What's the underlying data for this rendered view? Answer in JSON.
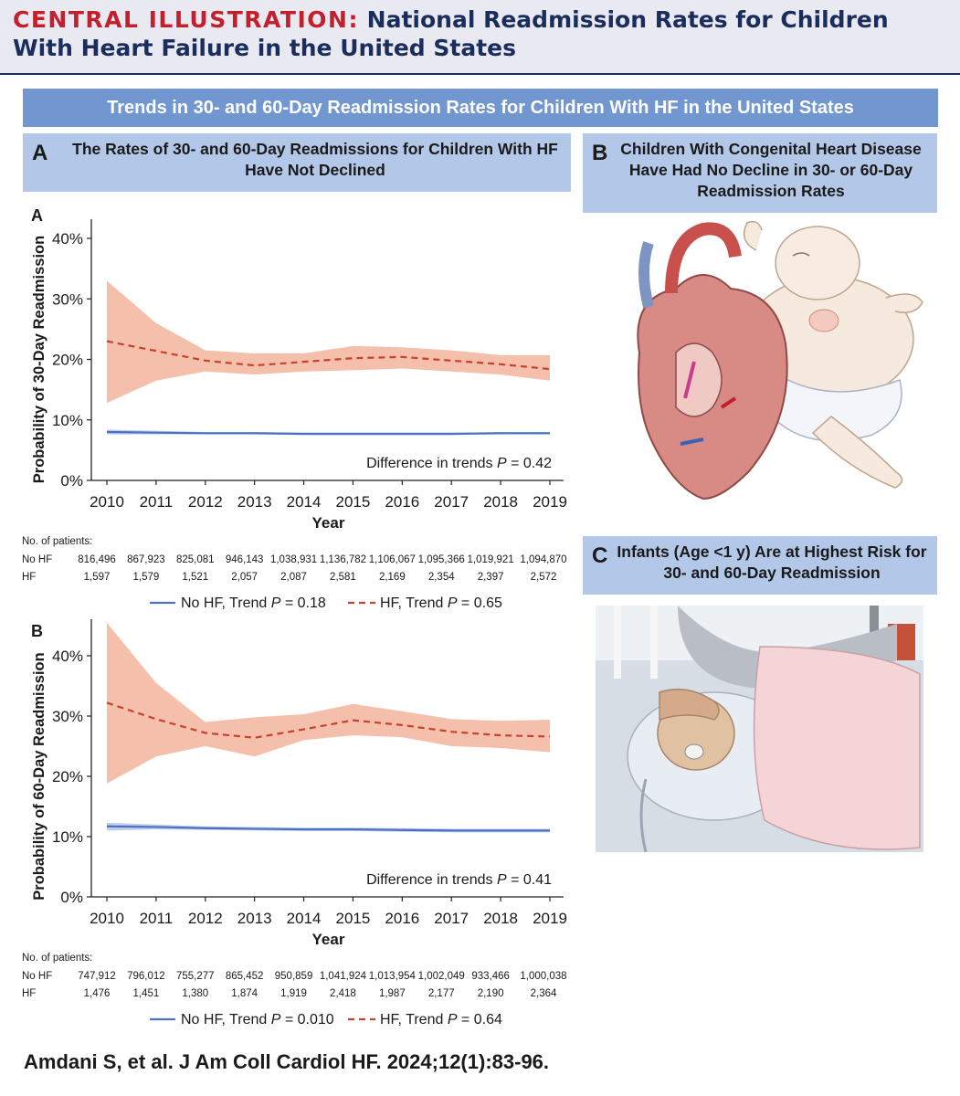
{
  "header": {
    "label": "CENTRAL ILLUSTRATION:",
    "title": "National Readmission Rates for Children With Heart Failure in the United States"
  },
  "banner": "Trends in 30- and 60-Day Readmission Rates for Children With HF in the United States",
  "panels": {
    "a": {
      "letter": "A",
      "title": "The Rates of 30- and 60-Day Readmissions for Children With HF Have Not Declined"
    },
    "b": {
      "letter": "B",
      "title": "Children With Congenital Heart Disease Have Had No Decline in 30- or 60-Day Readmission Rates"
    },
    "c": {
      "letter": "C",
      "title": "Infants (Age <1 y) Are at Highest Risk for 30- and 60-Day Readmission"
    }
  },
  "colors": {
    "accent_red": "#c3202d",
    "navy": "#1b2d5c",
    "banner_blue": "#7297d0",
    "panel_blue": "#b3c8e8",
    "hf_line": "#c9412c",
    "hf_band": "#f2b59c",
    "nohf_line": "#4a72c0",
    "nohf_band": "#b9c9e9"
  },
  "chart_data": [
    {
      "type": "line",
      "panel_label": "A",
      "ylabel": "Probability of 30-Day Readmission",
      "xlabel": "Year",
      "x": [
        2010,
        2011,
        2012,
        2013,
        2014,
        2015,
        2016,
        2017,
        2018,
        2019
      ],
      "ylim": [
        0,
        40
      ],
      "yticks": [
        "0%",
        "10%",
        "20%",
        "30%",
        "40%"
      ],
      "series": [
        {
          "name": "No HF",
          "style": "solid",
          "values": [
            8.0,
            7.9,
            7.8,
            7.8,
            7.7,
            7.7,
            7.7,
            7.7,
            7.8,
            7.8
          ],
          "ci_low": [
            7.6,
            7.6,
            7.6,
            7.6,
            7.5,
            7.5,
            7.5,
            7.5,
            7.6,
            7.6
          ],
          "ci_high": [
            8.4,
            8.2,
            8.0,
            8.0,
            7.9,
            7.9,
            7.9,
            7.9,
            8.0,
            8.0
          ]
        },
        {
          "name": "HF",
          "style": "dashed",
          "values": [
            23.0,
            21.4,
            19.8,
            19.0,
            19.6,
            20.2,
            20.4,
            19.8,
            19.2,
            18.4
          ],
          "ci_low": [
            12.8,
            16.5,
            18.0,
            17.5,
            18.0,
            18.2,
            18.5,
            18.0,
            17.5,
            16.5
          ],
          "ci_high": [
            33.0,
            26.0,
            21.5,
            21.0,
            21.0,
            22.2,
            22.0,
            21.5,
            20.7,
            20.7
          ]
        }
      ],
      "annotation": {
        "prefix": "Difference in trends ",
        "italic": "P",
        "suffix": " = 0.42"
      },
      "risk_table": {
        "heading": "No. of patients:",
        "rows": [
          {
            "label": "No HF",
            "values": [
              "816,496",
              "867,923",
              "825,081",
              "946,143",
              "1,038,931",
              "1,136,782",
              "1,106,067",
              "1,095,366",
              "1,019,921",
              "1,094,870"
            ]
          },
          {
            "label": "HF",
            "values": [
              "1,597",
              "1,579",
              "1,521",
              "2,057",
              "2,087",
              "2,581",
              "2,169",
              "2,354",
              "2,397",
              "2,572"
            ]
          }
        ]
      },
      "legend": [
        {
          "prefix": "No HF, Trend ",
          "italic": "P",
          "suffix": " = 0.18"
        },
        {
          "prefix": "HF, Trend ",
          "italic": "P",
          "suffix": " = 0.65"
        }
      ]
    },
    {
      "type": "line",
      "panel_label": "B",
      "ylabel": "Probability of 60-Day Readmission",
      "xlabel": "Year",
      "x": [
        2010,
        2011,
        2012,
        2013,
        2014,
        2015,
        2016,
        2017,
        2018,
        2019
      ],
      "ylim": [
        0,
        40
      ],
      "yticks": [
        "0%",
        "10%",
        "20%",
        "30%",
        "40%"
      ],
      "series": [
        {
          "name": "No HF",
          "style": "solid",
          "values": [
            11.7,
            11.6,
            11.4,
            11.3,
            11.2,
            11.2,
            11.1,
            11.0,
            11.0,
            11.0
          ],
          "ci_low": [
            11.0,
            11.2,
            11.1,
            11.0,
            10.9,
            10.9,
            10.8,
            10.7,
            10.7,
            10.7
          ],
          "ci_high": [
            12.3,
            12.0,
            11.7,
            11.6,
            11.5,
            11.5,
            11.4,
            11.3,
            11.3,
            11.3
          ]
        },
        {
          "name": "HF",
          "style": "dashed",
          "values": [
            32.2,
            29.5,
            27.2,
            26.4,
            27.8,
            29.3,
            28.5,
            27.4,
            26.8,
            26.6
          ],
          "ci_low": [
            18.8,
            23.3,
            25.0,
            23.3,
            26.0,
            26.8,
            26.5,
            25.0,
            24.7,
            24.0
          ],
          "ci_high": [
            45.5,
            35.5,
            29.0,
            29.8,
            30.3,
            32.0,
            30.8,
            29.5,
            29.2,
            29.4
          ]
        }
      ],
      "annotation": {
        "prefix": "Difference in trends ",
        "italic": "P",
        "suffix": " = 0.41"
      },
      "risk_table": {
        "heading": "No. of patients:",
        "rows": [
          {
            "label": "No HF",
            "values": [
              "747,912",
              "796,012",
              "755,277",
              "865,452",
              "950,859",
              "1,041,924",
              "1,013,954",
              "1,002,049",
              "933,466",
              "1,000,038"
            ]
          },
          {
            "label": "HF",
            "values": [
              "1,476",
              "1,451",
              "1,380",
              "1,874",
              "1,919",
              "2,418",
              "1,987",
              "2,177",
              "2,190",
              "2,364"
            ]
          }
        ]
      },
      "legend": [
        {
          "prefix": "No HF, Trend ",
          "italic": "P",
          "suffix": " = 0.010"
        },
        {
          "prefix": "HF, Trend ",
          "italic": "P",
          "suffix": " = 0.64"
        }
      ]
    }
  ],
  "citation": "Amdani S, et al. J Am Coll Cardiol HF. 2024;12(1):83-96."
}
